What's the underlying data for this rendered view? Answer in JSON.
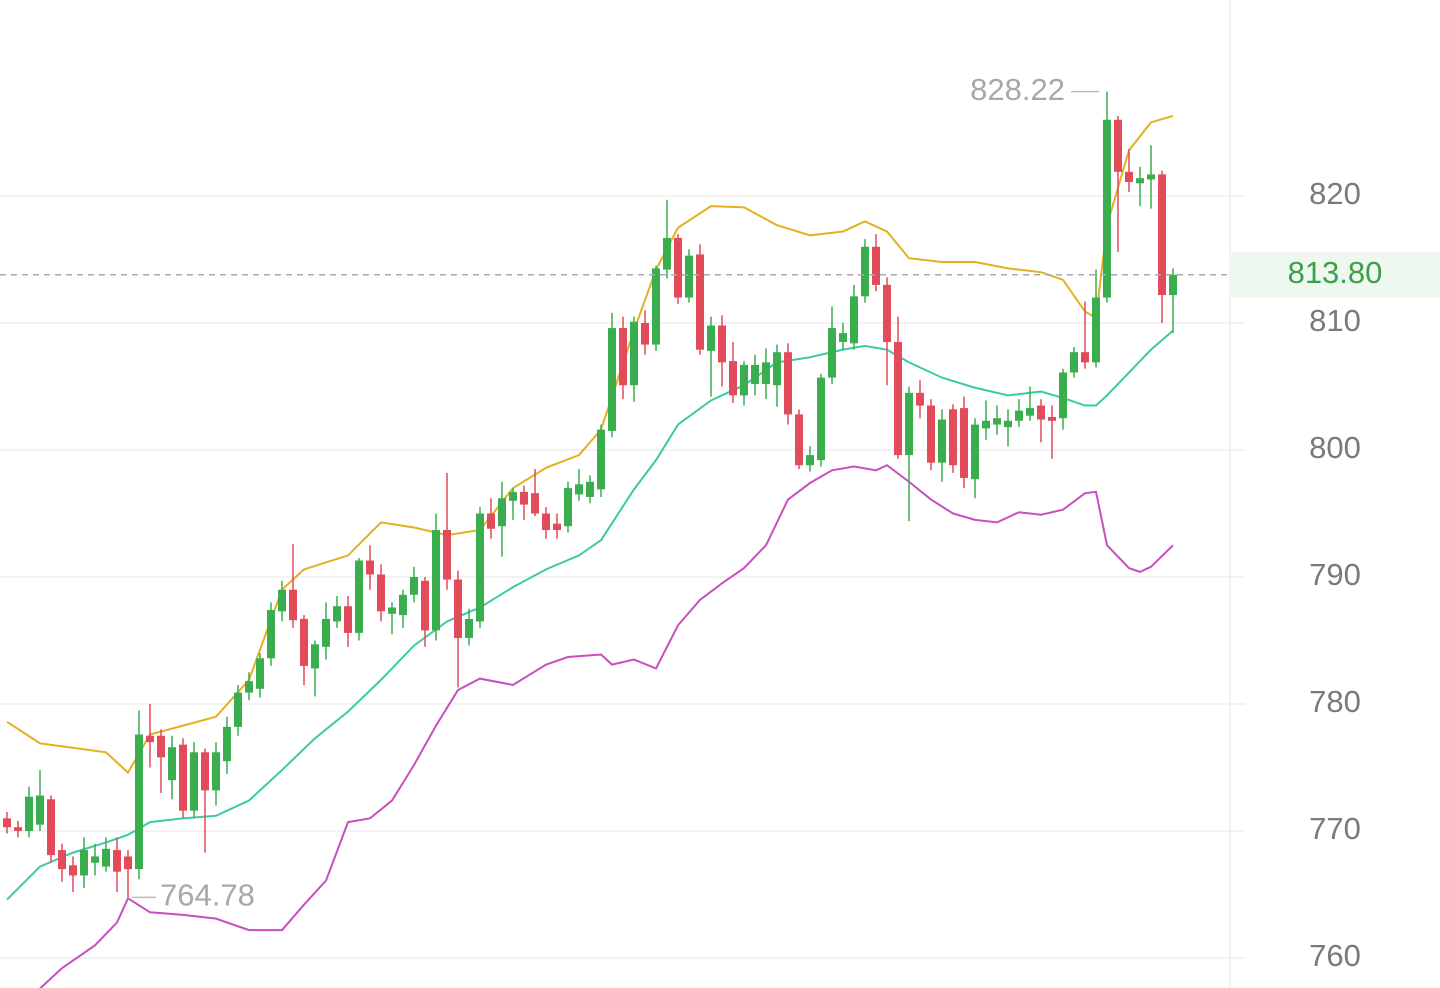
{
  "chart_data": {
    "type": "candlestick",
    "ylim": [
      757.64,
      835.43
    ],
    "yticks": [
      760,
      770,
      780,
      790,
      800,
      810,
      820
    ],
    "grid": true,
    "up_color": "#3aae4f",
    "down_color": "#e24b5a",
    "open": [
      771.0,
      770.3,
      770.0,
      770.5,
      772.5,
      768.5,
      767.3,
      766.5,
      767.5,
      767.2,
      768.5,
      768.0,
      767.0,
      777.5,
      777.5,
      774.0,
      776.8,
      771.6,
      776.2,
      773.2,
      775.5,
      778.2,
      780.9,
      781.2,
      783.6,
      787.3,
      789.0,
      786.7,
      782.8,
      784.5,
      786.5,
      787.7,
      785.6,
      791.3,
      790.2,
      787.1,
      787.0,
      788.6,
      789.7,
      785.8,
      793.7,
      789.8,
      785.2,
      786.5,
      795.0,
      794.0,
      796.0,
      796.7,
      796.6,
      795.0,
      794.2,
      794.0,
      796.5,
      796.3,
      796.9,
      801.5,
      809.6,
      805.1,
      810.0,
      808.3,
      814.2,
      816.7,
      812.0,
      815.4,
      807.8,
      809.8,
      807.0,
      804.3,
      805.2,
      805.2,
      805.1,
      807.7,
      802.8,
      798.8,
      799.2,
      805.7,
      808.5,
      808.4,
      812.1,
      816.0,
      813.0,
      808.5,
      799.6,
      804.5,
      803.5,
      799.0,
      803.2,
      803.3,
      797.7,
      801.7,
      802.0,
      801.8,
      802.3,
      802.7,
      803.5,
      802.6,
      802.5,
      806.1,
      807.7,
      806.9,
      812.0,
      826.0,
      821.9,
      821.0,
      821.3,
      821.7,
      812.2
    ],
    "high": [
      771.5,
      770.8,
      773.5,
      774.8,
      772.8,
      769.0,
      768.0,
      769.5,
      769.0,
      769.5,
      769.5,
      768.5,
      779.5,
      780.0,
      778.0,
      777.5,
      777.3,
      777.0,
      776.5,
      777.0,
      779.0,
      781.5,
      782.5,
      784.0,
      788.0,
      789.7,
      792.6,
      787.0,
      785.0,
      788.0,
      788.5,
      788.5,
      791.5,
      792.5,
      791.0,
      788.0,
      789.0,
      790.8,
      790.0,
      795.0,
      798.2,
      790.5,
      787.5,
      795.5,
      796.2,
      797.5,
      797.0,
      797.2,
      798.5,
      795.5,
      795.0,
      797.5,
      798.5,
      798.0,
      802.0,
      810.8,
      810.5,
      810.5,
      811.0,
      814.5,
      819.7,
      817.0,
      815.8,
      816.2,
      810.5,
      810.6,
      808.5,
      807.0,
      807.5,
      808.0,
      808.3,
      808.4,
      803.2,
      800.3,
      806.0,
      811.3,
      810.0,
      813.0,
      816.6,
      817.0,
      813.6,
      810.5,
      805.0,
      805.5,
      804.0,
      803.2,
      803.6,
      804.2,
      802.5,
      803.9,
      803.5,
      803.2,
      804.0,
      805.0,
      804.0,
      803.5,
      806.4,
      808.1,
      811.7,
      814.2,
      828.22,
      826.3,
      823.7,
      822.3,
      824.0,
      822.0,
      814.3
    ],
    "low": [
      769.8,
      769.5,
      769.5,
      770.0,
      767.5,
      766.0,
      765.2,
      765.5,
      766.5,
      766.8,
      765.2,
      764.78,
      766.2,
      775.0,
      773.0,
      772.5,
      771.0,
      771.0,
      768.3,
      772.0,
      774.5,
      777.5,
      780.3,
      780.5,
      783.0,
      786.5,
      786.0,
      781.5,
      780.6,
      783.5,
      786.0,
      784.5,
      785.0,
      789.0,
      786.5,
      785.5,
      786.0,
      788.0,
      784.5,
      785.0,
      789.0,
      781.3,
      784.6,
      786.0,
      793.0,
      791.6,
      794.5,
      794.5,
      794.8,
      793.0,
      793.0,
      793.5,
      796.0,
      795.8,
      796.3,
      801.0,
      804.0,
      803.8,
      807.5,
      807.8,
      813.5,
      811.5,
      811.6,
      807.5,
      804.2,
      805.0,
      803.7,
      803.5,
      804.3,
      804.0,
      803.4,
      802.0,
      798.5,
      798.3,
      798.7,
      805.2,
      807.9,
      807.9,
      811.6,
      812.5,
      805.1,
      799.3,
      794.4,
      802.5,
      798.4,
      797.5,
      798.2,
      797.0,
      796.2,
      800.8,
      801.2,
      800.3,
      801.8,
      802.3,
      800.6,
      799.3,
      801.6,
      805.7,
      806.4,
      806.5,
      811.6,
      815.6,
      820.3,
      819.2,
      819.0,
      810.0,
      809.2
    ],
    "close": [
      770.3,
      770.0,
      772.7,
      772.8,
      768.1,
      767.0,
      766.5,
      768.5,
      768.0,
      768.6,
      766.8,
      767.0,
      777.6,
      777.0,
      775.8,
      776.6,
      771.6,
      776.2,
      773.2,
      776.2,
      778.2,
      780.9,
      781.8,
      783.6,
      787.4,
      789.0,
      786.6,
      783.0,
      784.7,
      786.7,
      787.7,
      785.6,
      791.3,
      790.2,
      787.3,
      787.6,
      788.6,
      790.0,
      785.8,
      793.7,
      789.8,
      785.2,
      786.7,
      795.0,
      793.8,
      796.2,
      796.7,
      795.7,
      795.0,
      793.7,
      793.7,
      797.0,
      797.3,
      797.5,
      801.6,
      809.6,
      805.1,
      810.1,
      808.3,
      814.3,
      816.7,
      812.0,
      815.3,
      807.9,
      809.8,
      806.9,
      804.3,
      806.7,
      806.7,
      806.9,
      807.7,
      802.8,
      798.8,
      799.6,
      805.7,
      809.6,
      809.2,
      812.1,
      816.0,
      813.0,
      808.5,
      799.6,
      804.5,
      803.5,
      799.0,
      802.4,
      798.8,
      797.8,
      802.0,
      802.3,
      802.5,
      802.3,
      803.1,
      803.3,
      802.4,
      802.3,
      806.1,
      807.7,
      806.9,
      812.0,
      826.0,
      821.9,
      821.1,
      821.4,
      821.7,
      812.2,
      813.8
    ],
    "series": [
      {
        "color": "#e2b120",
        "x": [
          0,
          3,
          9,
          11,
          13,
          16,
          19,
          22,
          25,
          27,
          31,
          34,
          37,
          40,
          43,
          46,
          49,
          52,
          54,
          57,
          59,
          61,
          64,
          67,
          70,
          73,
          76,
          78,
          80,
          82,
          85,
          88,
          91,
          94,
          96,
          98,
          99,
          100,
          102,
          104,
          106
        ],
        "values": [
          778.6,
          776.9,
          776.2,
          774.6,
          777.6,
          778.3,
          779.0,
          781.9,
          789.0,
          790.6,
          791.7,
          794.3,
          793.9,
          793.3,
          793.7,
          797.0,
          798.6,
          799.6,
          801.6,
          809.4,
          814.2,
          817.5,
          819.2,
          819.1,
          817.7,
          816.9,
          817.2,
          818.0,
          817.2,
          815.1,
          814.8,
          814.8,
          814.3,
          814.0,
          813.4,
          810.9,
          810.4,
          817.7,
          823.6,
          825.8,
          826.3
        ]
      },
      {
        "color": "#3cc9a6",
        "x": [
          0,
          3,
          6,
          9,
          11,
          13,
          16,
          19,
          22,
          25,
          28,
          31,
          34,
          37,
          40,
          43,
          46,
          49,
          52,
          54,
          57,
          59,
          61,
          64,
          67,
          70,
          73,
          76,
          78,
          80,
          82,
          85,
          88,
          91,
          94,
          96,
          98,
          99,
          100,
          102,
          104,
          106
        ],
        "values": [
          764.6,
          767.2,
          768.3,
          769.1,
          769.7,
          770.7,
          771.0,
          771.2,
          772.4,
          774.8,
          777.3,
          779.4,
          781.9,
          784.6,
          786.5,
          787.6,
          789.2,
          790.6,
          791.7,
          792.9,
          796.9,
          799.2,
          802.0,
          803.9,
          805.1,
          806.9,
          807.3,
          807.9,
          808.2,
          807.9,
          806.9,
          805.7,
          804.9,
          804.3,
          804.6,
          804.1,
          803.5,
          803.5,
          804.3,
          806.1,
          807.9,
          809.4
        ]
      },
      {
        "color": "#c84fc0",
        "x": [
          3,
          5,
          8,
          10,
          11,
          13,
          16,
          19,
          22,
          25,
          27,
          29,
          31,
          33,
          35,
          37,
          39,
          41,
          43,
          46,
          49,
          51,
          54,
          55,
          57,
          59,
          61,
          63,
          65,
          67,
          69,
          71,
          73,
          75,
          77,
          79,
          80,
          82,
          84,
          86,
          88,
          90,
          92,
          94,
          96,
          98,
          99,
          100,
          102,
          103,
          104,
          106
        ],
        "values": [
          757.6,
          759.2,
          761.0,
          762.8,
          764.7,
          763.6,
          763.4,
          763.1,
          762.2,
          762.2,
          764.2,
          766.1,
          770.7,
          771.0,
          772.4,
          775.2,
          778.3,
          781.1,
          782.0,
          781.5,
          783.1,
          783.7,
          783.9,
          783.1,
          783.5,
          782.8,
          786.2,
          788.2,
          789.5,
          790.7,
          792.5,
          796.1,
          797.4,
          798.4,
          798.7,
          798.4,
          798.8,
          797.5,
          796.1,
          795.0,
          794.5,
          794.3,
          795.1,
          794.9,
          795.3,
          796.6,
          796.7,
          792.5,
          790.7,
          790.4,
          790.8,
          792.5
        ]
      }
    ],
    "last_price": {
      "value": 813.8,
      "label": "813.80"
    }
  }
}
